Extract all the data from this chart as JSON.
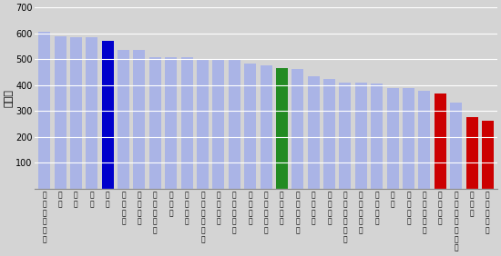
{
  "categories": [
    "シンガポール",
    "鼓国",
    "香港",
    "台湾",
    "日本",
    "ベルギー",
    "オランダ",
    "マレーシア",
    "ロシア",
    "アメリカ",
    "スウェーデン",
    "イギリス",
    "イスラエル",
    "イタリア",
    "ルーマニア",
    "国際平均",
    "ノルウェー",
    "レバノン",
    "ヨルダン",
    "インドネシア",
    "チュニジア",
    "エジプト",
    "チリ",
    "モロッコ",
    "フィリピン",
    "ボツワナ",
    "サウジアラビア",
    "ガーナ",
    "南アフリカ"
  ],
  "values": [
    605,
    589,
    586,
    585,
    570,
    537,
    536,
    508,
    508,
    508,
    499,
    496,
    496,
    484,
    477,
    467,
    461,
    433,
    424,
    411,
    410,
    406,
    387,
    387,
    378,
    366,
    332,
    276,
    264
  ],
  "colors": [
    "#aab4e6",
    "#aab4e6",
    "#aab4e6",
    "#aab4e6",
    "#0000cc",
    "#aab4e6",
    "#aab4e6",
    "#aab4e6",
    "#aab4e6",
    "#aab4e6",
    "#aab4e6",
    "#aab4e6",
    "#aab4e6",
    "#aab4e6",
    "#aab4e6",
    "#228b22",
    "#aab4e6",
    "#aab4e6",
    "#aab4e6",
    "#aab4e6",
    "#aab4e6",
    "#aab4e6",
    "#aab4e6",
    "#aab4e6",
    "#aab4e6",
    "#cc0000",
    "#aab4e6",
    "#cc0000",
    "#cc0000"
  ],
  "ylabel": "平均点",
  "ylim": [
    0,
    700
  ],
  "yticks": [
    0,
    100,
    200,
    300,
    400,
    500,
    600,
    700
  ],
  "bg_color": "#d4d4d4",
  "bar_width": 0.75,
  "label_fontsize": 5.5,
  "ylabel_fontsize": 8,
  "ytick_fontsize": 7
}
